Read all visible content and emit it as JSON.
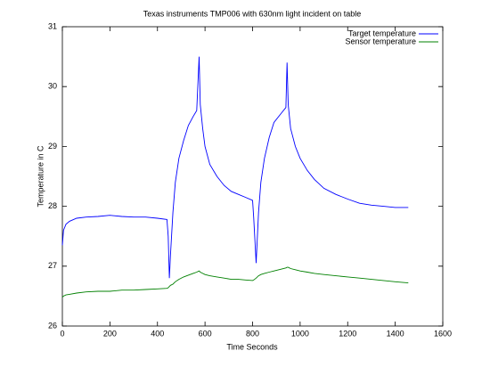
{
  "chart_data": {
    "type": "line",
    "title": "Texas instruments TMP006 with 630nm light incident on table",
    "x_label": "Time Seconds",
    "y_label": "Temperature in C",
    "x": [
      0,
      5,
      15,
      30,
      60,
      100,
      150,
      200,
      250,
      300,
      350,
      400,
      440,
      445,
      450,
      455,
      465,
      475,
      490,
      510,
      530,
      550,
      565,
      575,
      580,
      590,
      600,
      620,
      650,
      680,
      710,
      740,
      770,
      800,
      805,
      815,
      825,
      835,
      850,
      870,
      890,
      920,
      940,
      945,
      950,
      960,
      980,
      1000,
      1030,
      1060,
      1100,
      1150,
      1200,
      1250,
      1300,
      1350,
      1400,
      1455
    ],
    "series": [
      {
        "name": "Target temperature",
        "color": "#0000ff",
        "values": [
          27.35,
          27.6,
          27.7,
          27.75,
          27.8,
          27.82,
          27.83,
          27.85,
          27.83,
          27.82,
          27.82,
          27.8,
          27.78,
          27.5,
          26.8,
          27.2,
          27.9,
          28.4,
          28.8,
          29.1,
          29.35,
          29.5,
          29.6,
          30.5,
          29.7,
          29.3,
          29.0,
          28.7,
          28.5,
          28.35,
          28.25,
          28.2,
          28.15,
          28.1,
          27.8,
          27.05,
          27.9,
          28.4,
          28.8,
          29.15,
          29.4,
          29.55,
          29.65,
          30.4,
          29.7,
          29.3,
          29.0,
          28.8,
          28.6,
          28.45,
          28.3,
          28.2,
          28.12,
          28.05,
          28.02,
          28.0,
          27.98,
          27.98
        ]
      },
      {
        "name": "Sensor temperature",
        "color": "#008000",
        "values": [
          26.48,
          26.5,
          26.52,
          26.53,
          26.55,
          26.57,
          26.58,
          26.58,
          26.6,
          26.6,
          26.61,
          26.62,
          26.63,
          26.64,
          26.66,
          26.68,
          26.7,
          26.74,
          26.78,
          26.82,
          26.85,
          26.88,
          26.9,
          26.92,
          26.9,
          26.88,
          26.86,
          26.84,
          26.82,
          26.8,
          26.78,
          26.78,
          26.77,
          26.76,
          26.77,
          26.8,
          26.84,
          26.86,
          26.88,
          26.9,
          26.92,
          26.95,
          26.97,
          26.98,
          26.98,
          26.96,
          26.94,
          26.92,
          26.9,
          26.88,
          26.86,
          26.84,
          26.82,
          26.8,
          26.78,
          26.76,
          26.74,
          26.72
        ]
      }
    ],
    "xlim": [
      0,
      1600
    ],
    "xticks": [
      0,
      200,
      400,
      600,
      800,
      1000,
      1200,
      1400,
      1600
    ],
    "ylim": [
      26,
      31
    ],
    "yticks": [
      26,
      27,
      28,
      29,
      30,
      31
    ],
    "grid": false,
    "legend": "top-right"
  }
}
